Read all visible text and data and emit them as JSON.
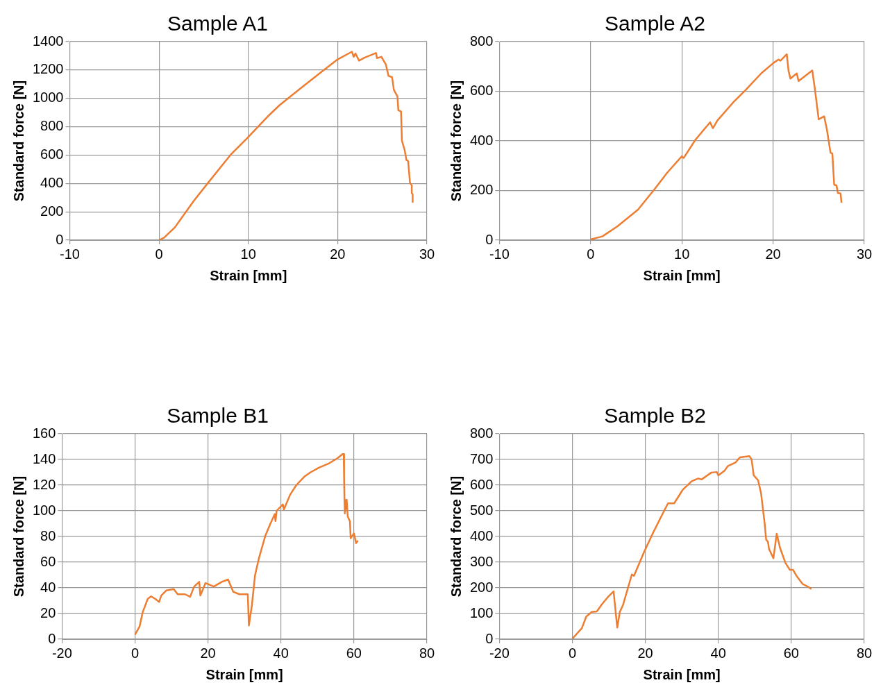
{
  "chart_data": [
    {
      "type": "line",
      "title": "Sample A1",
      "xlabel": "Strain [mm]",
      "ylabel": "Standard force [N]",
      "xlim": [
        -10,
        30
      ],
      "xticks": [
        -10,
        0,
        10,
        20,
        30
      ],
      "ylim": [
        0,
        1400
      ],
      "yticks": [
        0,
        200,
        400,
        600,
        800,
        1000,
        1200,
        1400
      ],
      "grid": true,
      "marker": "none",
      "series": [
        {
          "color": "#ed7d31",
          "x": [
            0,
            0.57,
            1.77,
            3.9,
            5.6,
            8.0,
            10.0,
            12.3,
            13.5,
            15.8,
            17.8,
            20.0,
            21.6,
            21.8,
            22.0,
            22.4,
            23.0,
            24.3,
            24.4,
            24.9,
            25.4,
            25.7,
            26.1,
            26.3,
            26.7,
            26.8,
            27.1,
            27.2,
            27.5,
            27.7,
            27.9,
            28.1,
            28.3,
            28.3,
            28.4,
            28.4
          ],
          "values": [
            0,
            18,
            90,
            278,
            413,
            601,
            727,
            880,
            952,
            1068,
            1167,
            1275,
            1329,
            1293,
            1316,
            1266,
            1287,
            1320,
            1284,
            1293,
            1239,
            1158,
            1149,
            1059,
            1014,
            916,
            907,
            700,
            637,
            566,
            557,
            404,
            386,
            332,
            323,
            269
          ]
        }
      ]
    },
    {
      "type": "line",
      "title": "Sample A2",
      "xlabel": "Strain [mm]",
      "ylabel": "Standard force [N]",
      "xlim": [
        -10,
        30
      ],
      "xticks": [
        -10,
        0,
        10,
        20,
        30
      ],
      "ylim": [
        0,
        800
      ],
      "yticks": [
        0,
        200,
        400,
        600,
        800
      ],
      "grid": true,
      "marker": "none",
      "series": [
        {
          "color": "#ed7d31",
          "x": [
            0,
            1.29,
            2.95,
            5.2,
            7.0,
            8.4,
            10.0,
            10.2,
            11.5,
            13.1,
            13.4,
            13.9,
            15.6,
            17.0,
            18.7,
            20.0,
            20.6,
            20.8,
            21.5,
            21.7,
            21.9,
            22.6,
            22.8,
            24.3,
            24.6,
            25.0,
            25.6,
            25.9,
            26.3,
            26.5,
            26.7,
            26.95,
            27.1,
            27.4,
            27.5
          ],
          "values": [
            3,
            15,
            56,
            123,
            205,
            272,
            338,
            331,
            405,
            475,
            451,
            482,
            554,
            605,
            672,
            713,
            728,
            723,
            749,
            682,
            651,
            672,
            641,
            684,
            605,
            487,
            499,
            446,
            352,
            349,
            223,
            221,
            190,
            188,
            151
          ]
        }
      ]
    },
    {
      "type": "line",
      "title": "Sample B1",
      "xlabel": "Strain [mm]",
      "ylabel": "Standard force [N]",
      "xlim": [
        -20,
        80
      ],
      "xticks": [
        -20,
        0,
        20,
        40,
        60,
        80
      ],
      "ylim": [
        0,
        160
      ],
      "yticks": [
        0,
        20,
        40,
        60,
        80,
        100,
        120,
        140,
        160
      ],
      "grid": true,
      "marker": "none",
      "series": [
        {
          "color": "#ed7d31",
          "x": [
            0,
            1.24,
            2.1,
            3.5,
            4.4,
            5.5,
            6.6,
            7.2,
            8.6,
            10.6,
            11.7,
            13.7,
            15.1,
            16.2,
            17.6,
            17.9,
            19.3,
            21.6,
            23.8,
            25.5,
            26.9,
            28.6,
            30.9,
            31.2,
            32.0,
            32.9,
            34.0,
            35.7,
            37.1,
            38.3,
            38.5,
            38.8,
            40.5,
            40.8,
            42.5,
            44.2,
            46.4,
            48.1,
            50.4,
            53.2,
            55.4,
            56.9,
            57.2,
            57.3,
            57.4,
            57.5,
            58.0,
            58.3,
            58.9,
            59.1,
            60.0,
            60.6,
            61.1
          ],
          "values": [
            3.6,
            9.8,
            21,
            31.5,
            33.4,
            31.5,
            29,
            34,
            38,
            39,
            35,
            35,
            33,
            41,
            44.7,
            34,
            43.7,
            41,
            44.7,
            46.5,
            37,
            35,
            35,
            10.7,
            25.8,
            50,
            63.5,
            80.5,
            90,
            97.4,
            92,
            100,
            105,
            101,
            112.5,
            120,
            126.6,
            130,
            133.6,
            137,
            140.8,
            144.2,
            144.2,
            125.7,
            108.7,
            98,
            108.7,
            95.5,
            91.8,
            78.6,
            82.4,
            74.8,
            76.7
          ]
        }
      ]
    },
    {
      "type": "line",
      "title": "Sample B2",
      "xlabel": "Strain [mm]",
      "ylabel": "Standard force [N]",
      "xlim": [
        -20,
        80
      ],
      "xticks": [
        -20,
        0,
        20,
        40,
        60,
        80
      ],
      "ylim": [
        0,
        800
      ],
      "yticks": [
        0,
        100,
        200,
        300,
        400,
        500,
        600,
        700,
        800
      ],
      "grid": true,
      "marker": "none",
      "series": [
        {
          "color": "#ed7d31",
          "x": [
            0,
            2.6,
            3.8,
            5.3,
            6.7,
            8.2,
            9.8,
            11.3,
            12.3,
            13.0,
            13.9,
            16.3,
            16.9,
            19.6,
            22.0,
            24.4,
            26.2,
            27.9,
            30.3,
            32.7,
            34.5,
            35.4,
            38.1,
            39.6,
            40.0,
            41.7,
            42.6,
            44.7,
            45.9,
            48.5,
            49.1,
            49.7,
            50.9,
            51.7,
            52.7,
            53.1,
            53.6,
            53.9,
            54.5,
            55.1,
            56.0,
            56.9,
            58.4,
            59.6,
            60.5,
            61.4,
            63.1,
            64.6,
            65.5
          ],
          "values": [
            2,
            43,
            88,
            106,
            108,
            138,
            165,
            186,
            45,
            106,
            134,
            252,
            247,
            338,
            411,
            479,
            529,
            529,
            583,
            615,
            626,
            622,
            649,
            651,
            638,
            656,
            674,
            688,
            708,
            713,
            701,
            638,
            619,
            569,
            451,
            388,
            379,
            351,
            333,
            315,
            411,
            356,
            297,
            270,
            270,
            247,
            215,
            204,
            195
          ]
        }
      ]
    }
  ]
}
